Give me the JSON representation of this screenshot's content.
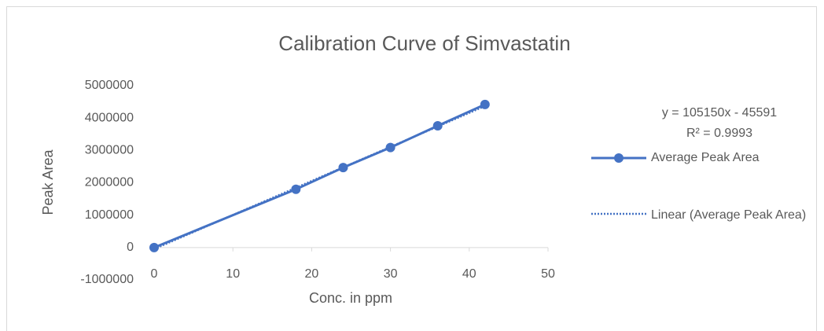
{
  "chart_data": {
    "type": "scatter-line",
    "title": "Calibration Curve of Simvastatin",
    "x_label": "Conc. in ppm",
    "y_label": "Peak Area",
    "x": [
      0,
      18,
      24,
      30,
      36,
      42
    ],
    "series": [
      {
        "name": "Average  Peak Area",
        "color": "#4472c4",
        "values": [
          0,
          1800000,
          2470000,
          3090000,
          3760000,
          4420000
        ]
      }
    ],
    "trendline": {
      "name": "Linear (Average  Peak Area)",
      "equation": "y = 105150x - 45591",
      "r_squared": "R² = 0.9993",
      "slope": 105150,
      "intercept": -45591,
      "color": "#4472c4"
    },
    "xlim": [
      0,
      50
    ],
    "xticks": [
      0,
      10,
      20,
      30,
      40,
      50
    ],
    "ylim": [
      -1000000,
      5000000
    ],
    "yticks": [
      -1000000,
      0,
      1000000,
      2000000,
      3000000,
      4000000,
      5000000
    ],
    "grid": false,
    "legend": "right"
  }
}
